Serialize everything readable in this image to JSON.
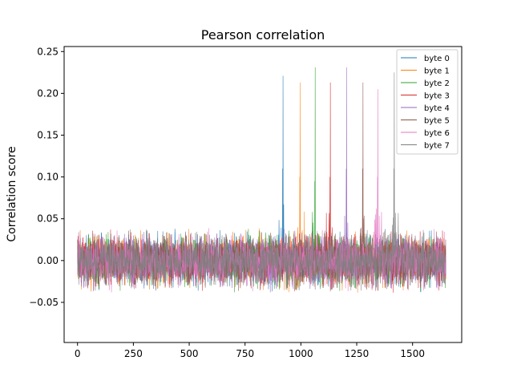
{
  "chart_data": {
    "type": "line",
    "title": "Pearson correlation",
    "xlabel": "",
    "ylabel": "Correlation score",
    "xlim": [
      -60,
      1720
    ],
    "ylim": [
      -0.098,
      0.256
    ],
    "xticks": [
      0,
      250,
      500,
      750,
      1000,
      1250,
      1500
    ],
    "xtick_labels": [
      "0",
      "250",
      "500",
      "750",
      "1000",
      "1250",
      "1500"
    ],
    "yticks": [
      -0.05,
      0.0,
      0.05,
      0.1,
      0.15,
      0.2,
      0.25
    ],
    "ytick_labels": [
      "−0.05",
      "0.00",
      "0.05",
      "0.10",
      "0.15",
      "0.20",
      "0.25"
    ],
    "grid": false,
    "legend_position": "top-right",
    "n_points": 1650,
    "noise_amplitude": 0.03,
    "series": [
      {
        "name": "byte 0",
        "color": "#1f77b4",
        "peak_x": 920,
        "peak_y": 0.221,
        "pre_peak_y": 0.11
      },
      {
        "name": "byte 1",
        "color": "#ff7f0e",
        "peak_x": 997,
        "peak_y": 0.213,
        "pre_peak_y": 0.1
      },
      {
        "name": "byte 2",
        "color": "#2ca02c",
        "peak_x": 1064,
        "peak_y": 0.231,
        "pre_peak_y": 0.095
      },
      {
        "name": "byte 3",
        "color": "#d62728",
        "peak_x": 1132,
        "peak_y": 0.213,
        "pre_peak_y": 0.1
      },
      {
        "name": "byte 4",
        "color": "#9467bd",
        "peak_x": 1205,
        "peak_y": 0.231,
        "pre_peak_y": 0.11
      },
      {
        "name": "byte 5",
        "color": "#8c564b",
        "peak_x": 1278,
        "peak_y": 0.213,
        "pre_peak_y": 0.11
      },
      {
        "name": "byte 6",
        "color": "#e377c2",
        "peak_x": 1345,
        "peak_y": 0.205,
        "pre_peak_y": 0.1
      },
      {
        "name": "byte 7",
        "color": "#7f7f7f",
        "peak_x": 1418,
        "peak_y": 0.225,
        "pre_peak_y": 0.11
      }
    ]
  }
}
